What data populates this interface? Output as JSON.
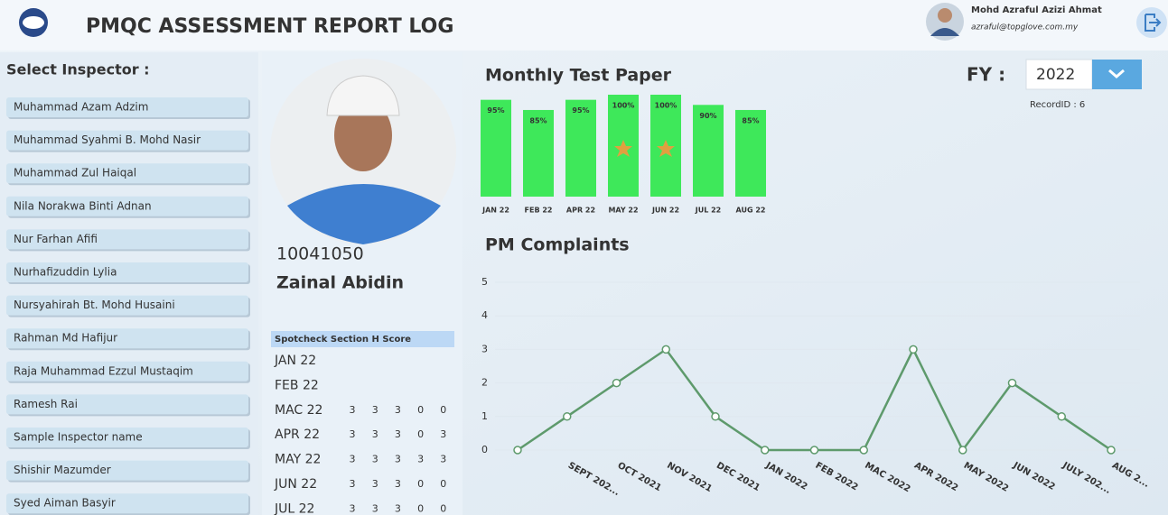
{
  "header": {
    "title": "PMQC ASSESSMENT REPORT LOG",
    "user_name": "Mohd Azraful Azizi Ahmat",
    "user_email": "azraful@topglove.com.my"
  },
  "sidebar": {
    "heading": "Select Inspector :",
    "inspectors": [
      "Muhammad Azam Adzim",
      "Muhammad Syahmi B. Mohd Nasir",
      "Muhammad Zul Haiqal",
      "Nila Norakwa Binti Adnan",
      "Nur Farhan Afifi",
      "Nurhafizuddin Lylia",
      "Nursyahirah Bt. Mohd Husaini",
      "Rahman Md Hafijur",
      "Raja Muhammad Ezzul Mustaqim",
      "Ramesh Rai",
      "Sample Inspector name",
      "Shishir Mazumder",
      "Syed Aiman Basyir"
    ]
  },
  "profile": {
    "id": "10041050",
    "name": "Zainal Abidin",
    "score_table": {
      "title": "Spotcheck Section H Score",
      "rows": [
        {
          "month": "JAN 22",
          "scores": []
        },
        {
          "month": "FEB 22",
          "scores": []
        },
        {
          "month": "MAC 22",
          "scores": [
            3,
            3,
            3,
            0,
            0
          ]
        },
        {
          "month": "APR 22",
          "scores": [
            3,
            3,
            3,
            0,
            3
          ]
        },
        {
          "month": "MAY 22",
          "scores": [
            3,
            3,
            3,
            3,
            3
          ]
        },
        {
          "month": "JUN 22",
          "scores": [
            3,
            3,
            3,
            0,
            0
          ]
        },
        {
          "month": "JUL 22",
          "scores": [
            3,
            3,
            3,
            0,
            0
          ]
        }
      ]
    }
  },
  "filter": {
    "label": "FY :",
    "year": "2022",
    "record": "RecordID : 6"
  },
  "chart_data": [
    {
      "type": "bar",
      "title": "Monthly Test Paper",
      "categories": [
        "JAN 22",
        "FEB 22",
        "APR 22",
        "MAY 22",
        "JUN 22",
        "JUL 22",
        "AUG 22"
      ],
      "values": [
        95,
        85,
        95,
        100,
        100,
        90,
        85
      ],
      "value_labels": [
        "95%",
        "85%",
        "95%",
        "100%",
        "100%",
        "90%",
        "85%"
      ],
      "color": "#3ee85a",
      "ylim": [
        0,
        100
      ]
    },
    {
      "type": "line",
      "title": "PM Complaints",
      "categories": [
        null,
        "SEPT 202...",
        "OCT 2021",
        "NOV 2021",
        "DEC 2021",
        "JAN 2022",
        "FEB 2022",
        "MAC 2022",
        "APR 2022",
        "MAY 2022",
        "JUN 2022",
        "JULY 202...",
        "AUG 2..."
      ],
      "values": [
        0,
        1,
        2,
        3,
        1,
        0,
        0,
        0,
        3,
        0,
        2,
        1,
        0
      ],
      "color": "#5e9a6c",
      "ylim": [
        0,
        5
      ],
      "yticks": [
        0,
        1,
        2,
        3,
        4,
        5
      ],
      "grid": true
    }
  ]
}
